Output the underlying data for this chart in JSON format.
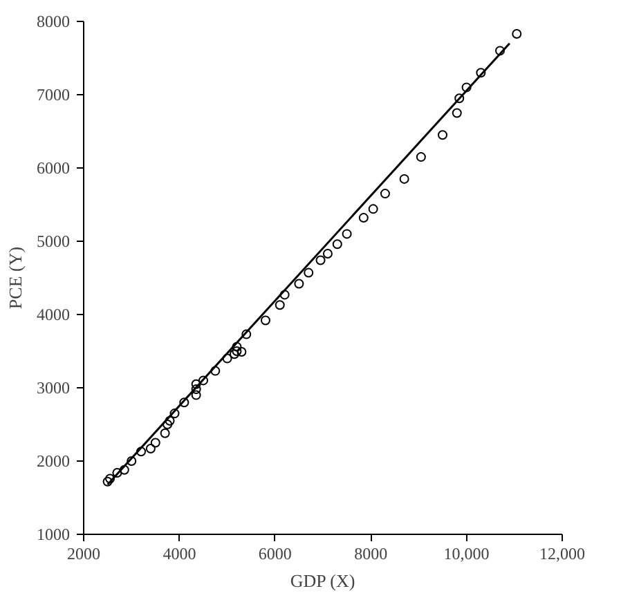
{
  "chart_data": {
    "type": "scatter",
    "xlabel": "GDP (X)",
    "ylabel": "PCE (Y)",
    "xlim": [
      2000,
      12000
    ],
    "ylim": [
      1000,
      8000
    ],
    "xticks": [
      2000,
      4000,
      6000,
      8000,
      {
        "value": 10000,
        "label": "10,000"
      },
      {
        "value": 12000,
        "label": "12,000"
      }
    ],
    "yticks": [
      1000,
      2000,
      3000,
      4000,
      5000,
      6000,
      7000,
      8000
    ],
    "grid": false,
    "series": [
      {
        "marker": "circle",
        "color": "#000000",
        "x": [
          2500,
          2550,
          2700,
          2850,
          3000,
          3200,
          3400,
          3500,
          3700,
          3750,
          3800,
          3900,
          4100,
          4350,
          4350,
          4350,
          4500,
          4750,
          5000,
          5150,
          5200,
          5200,
          5300,
          5400,
          5800,
          6100,
          6200,
          6500,
          6700,
          6950,
          7100,
          7300,
          7500,
          7850,
          8050,
          8300,
          8700,
          9050,
          9500,
          9800,
          9850,
          10000,
          10300,
          10700,
          11050
        ],
        "values": [
          1720,
          1760,
          1840,
          1880,
          2000,
          2130,
          2170,
          2250,
          2380,
          2500,
          2550,
          2650,
          2800,
          2900,
          2980,
          3050,
          3100,
          3230,
          3400,
          3460,
          3500,
          3560,
          3490,
          3730,
          3920,
          4130,
          4270,
          4420,
          4570,
          4740,
          4830,
          4960,
          5100,
          5320,
          5440,
          5650,
          5850,
          6150,
          6450,
          6750,
          6950,
          7100,
          7300,
          7600,
          7830
        ]
      },
      {
        "type": "line",
        "color": "#000000",
        "x": [
          2500,
          10900
        ],
        "values": [
          1680,
          7700
        ]
      }
    ]
  }
}
